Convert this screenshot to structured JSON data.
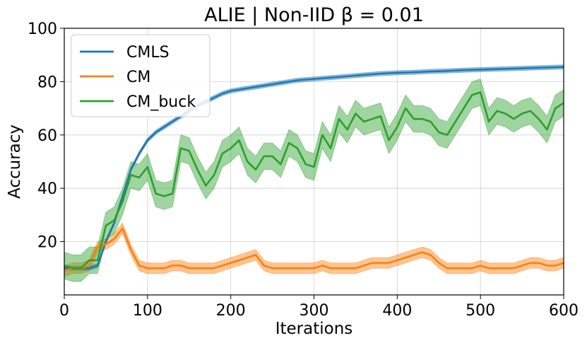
{
  "chart_data": {
    "type": "line",
    "title": "ALIE | Non-IID β = 0.01",
    "xlabel": "Iterations",
    "ylabel": "Accuracy",
    "xlim": [
      0,
      600
    ],
    "ylim": [
      0,
      100
    ],
    "xticks": [
      0,
      100,
      200,
      300,
      400,
      500,
      600
    ],
    "yticks": [
      20,
      40,
      60,
      80,
      100
    ],
    "grid": true,
    "legend_position": "top-left",
    "series": [
      {
        "name": "CMLS",
        "color": "#1f77b4",
        "x": [
          0,
          10,
          20,
          30,
          40,
          50,
          60,
          70,
          80,
          90,
          100,
          110,
          120,
          130,
          140,
          150,
          160,
          170,
          180,
          190,
          200,
          220,
          240,
          260,
          280,
          300,
          320,
          340,
          360,
          380,
          400,
          420,
          440,
          460,
          480,
          500,
          520,
          540,
          560,
          580,
          600
        ],
        "y": [
          10,
          10,
          10,
          10,
          11,
          20,
          27,
          37,
          47,
          53,
          58,
          61,
          63,
          65,
          67,
          69,
          71,
          72.5,
          74,
          75.5,
          76.5,
          77.5,
          78.5,
          79.5,
          80.5,
          81,
          81.5,
          82,
          82.5,
          83,
          83.3,
          83.5,
          83.8,
          84,
          84.3,
          84.5,
          84.7,
          84.9,
          85.1,
          85.3,
          85.5
        ],
        "band": 0.8
      },
      {
        "name": "CM",
        "color": "#ff7f0e",
        "x": [
          0,
          10,
          20,
          30,
          40,
          50,
          60,
          70,
          80,
          90,
          100,
          110,
          120,
          130,
          140,
          150,
          160,
          170,
          180,
          190,
          200,
          210,
          220,
          230,
          240,
          250,
          260,
          270,
          280,
          290,
          300,
          310,
          320,
          330,
          340,
          350,
          360,
          370,
          380,
          390,
          400,
          410,
          420,
          430,
          440,
          450,
          460,
          470,
          480,
          490,
          500,
          510,
          520,
          530,
          540,
          550,
          560,
          570,
          580,
          590,
          600
        ],
        "y": [
          9,
          10,
          10,
          11,
          18,
          19,
          21,
          25,
          17,
          11,
          10,
          10,
          10,
          11,
          11,
          10,
          10,
          10,
          10,
          11,
          12,
          13,
          14,
          15,
          11,
          10,
          10,
          10,
          10,
          10,
          10,
          11,
          10,
          10,
          10,
          10,
          11,
          12,
          12,
          12,
          13,
          14,
          15,
          16,
          15,
          12,
          10,
          10,
          10,
          10,
          11,
          10,
          10,
          10,
          10,
          11,
          12,
          12,
          11,
          11,
          12
        ],
        "band": 2
      },
      {
        "name": "CM_buck",
        "color": "#2ca02c",
        "x": [
          0,
          10,
          20,
          30,
          40,
          50,
          60,
          70,
          80,
          90,
          100,
          110,
          120,
          130,
          140,
          150,
          160,
          170,
          180,
          190,
          200,
          210,
          220,
          230,
          240,
          250,
          260,
          270,
          280,
          290,
          300,
          310,
          320,
          330,
          340,
          350,
          360,
          370,
          380,
          390,
          400,
          410,
          420,
          430,
          440,
          450,
          460,
          470,
          480,
          490,
          500,
          510,
          520,
          530,
          540,
          550,
          560,
          570,
          580,
          590,
          600
        ],
        "y": [
          11,
          10,
          10,
          13,
          13,
          26,
          28,
          35,
          45,
          44,
          48,
          38,
          37,
          38,
          55,
          54,
          47,
          41,
          45,
          53,
          55,
          58,
          50,
          47,
          52,
          52,
          49,
          57,
          55,
          49,
          48,
          60,
          55,
          66,
          62,
          68,
          65,
          66,
          67,
          58,
          63,
          70,
          66,
          66,
          65,
          61,
          60,
          65,
          70,
          75,
          76,
          65,
          69,
          68,
          66,
          68,
          69,
          66,
          62,
          70,
          72
        ],
        "band": 5
      }
    ]
  }
}
